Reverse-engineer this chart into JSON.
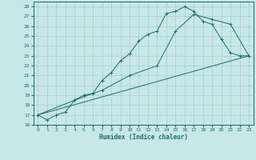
{
  "xlabel": "Humidex (Indice chaleur)",
  "background_color": "#c8e8e8",
  "grid_color": "#a8cccc",
  "line_color": "#1a6b6b",
  "xlim": [
    -0.5,
    23.5
  ],
  "ylim": [
    16,
    28.5
  ],
  "xticks": [
    0,
    1,
    2,
    3,
    4,
    5,
    6,
    7,
    8,
    9,
    10,
    11,
    12,
    13,
    14,
    15,
    16,
    17,
    18,
    19,
    20,
    21,
    22,
    23
  ],
  "yticks": [
    16,
    17,
    18,
    19,
    20,
    21,
    22,
    23,
    24,
    25,
    26,
    27,
    28
  ],
  "line1_x": [
    0,
    1,
    2,
    3,
    4,
    5,
    6,
    7,
    8,
    9,
    10,
    11,
    12,
    13,
    14,
    15,
    16,
    17,
    18,
    19,
    20,
    21,
    22,
    23
  ],
  "line1_y": [
    17.0,
    16.5,
    17.0,
    17.3,
    18.5,
    19.0,
    19.2,
    20.5,
    21.3,
    22.5,
    23.2,
    24.5,
    25.2,
    25.5,
    27.3,
    27.5,
    28.0,
    27.5,
    26.5,
    26.2,
    24.7,
    23.3,
    23.0,
    23.0
  ],
  "line2_x": [
    0,
    4,
    7,
    10,
    13,
    15,
    17,
    19,
    21,
    23
  ],
  "line2_y": [
    17.0,
    18.5,
    19.5,
    21.0,
    22.0,
    25.5,
    27.2,
    26.7,
    26.2,
    23.0
  ],
  "line3_x": [
    0,
    23
  ],
  "line3_y": [
    17.0,
    23.0
  ]
}
